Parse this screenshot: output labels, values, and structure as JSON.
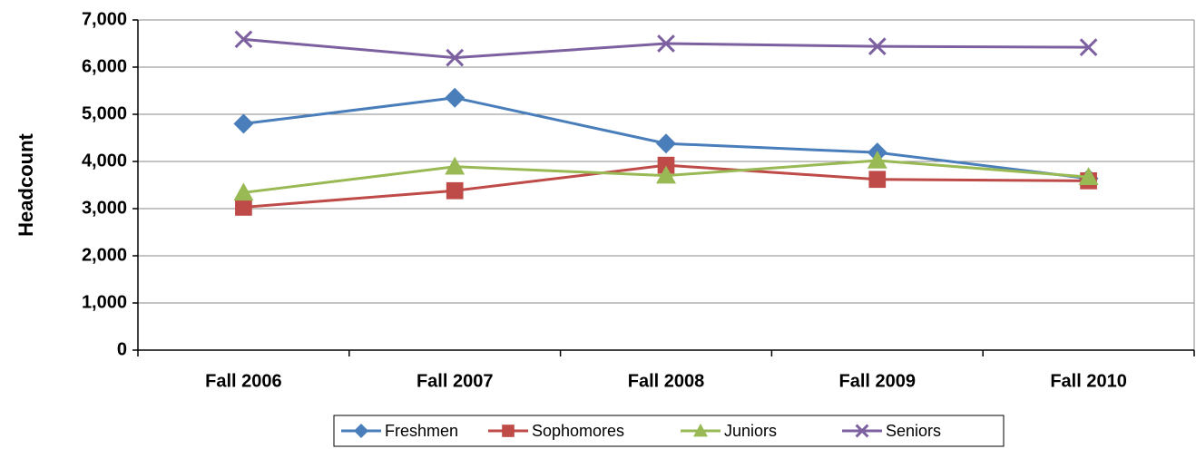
{
  "chart_data": {
    "type": "line",
    "ylabel": "Headcount",
    "categories": [
      "Fall 2006",
      "Fall 2007",
      "Fall 2008",
      "Fall 2009",
      "Fall 2010"
    ],
    "series": [
      {
        "name": "Freshmen",
        "color": "#4a7ebb",
        "marker": "diamond",
        "values": [
          4800,
          5350,
          4380,
          4190,
          3640
        ]
      },
      {
        "name": "Sophomores",
        "color": "#be4b48",
        "marker": "square",
        "values": [
          3030,
          3380,
          3920,
          3620,
          3590
        ]
      },
      {
        "name": "Juniors",
        "color": "#98b954",
        "marker": "triangle",
        "values": [
          3340,
          3890,
          3700,
          4020,
          3670
        ]
      },
      {
        "name": "Seniors",
        "color": "#7d60a0",
        "marker": "x",
        "values": [
          6590,
          6200,
          6500,
          6440,
          6420
        ]
      }
    ],
    "ylim": [
      0,
      7000
    ],
    "yticks": [
      0,
      {
        "value": 1000,
        "label": "1,000"
      },
      {
        "value": 2000,
        "label": "2,000"
      },
      {
        "value": 3000,
        "label": "3,000"
      },
      {
        "value": 4000,
        "label": "4,000"
      },
      {
        "value": 5000,
        "label": "5,000"
      },
      {
        "value": 6000,
        "label": "6,000"
      },
      {
        "value": 7000,
        "label": "7,000"
      }
    ],
    "grid": true,
    "legend": "bottom"
  }
}
